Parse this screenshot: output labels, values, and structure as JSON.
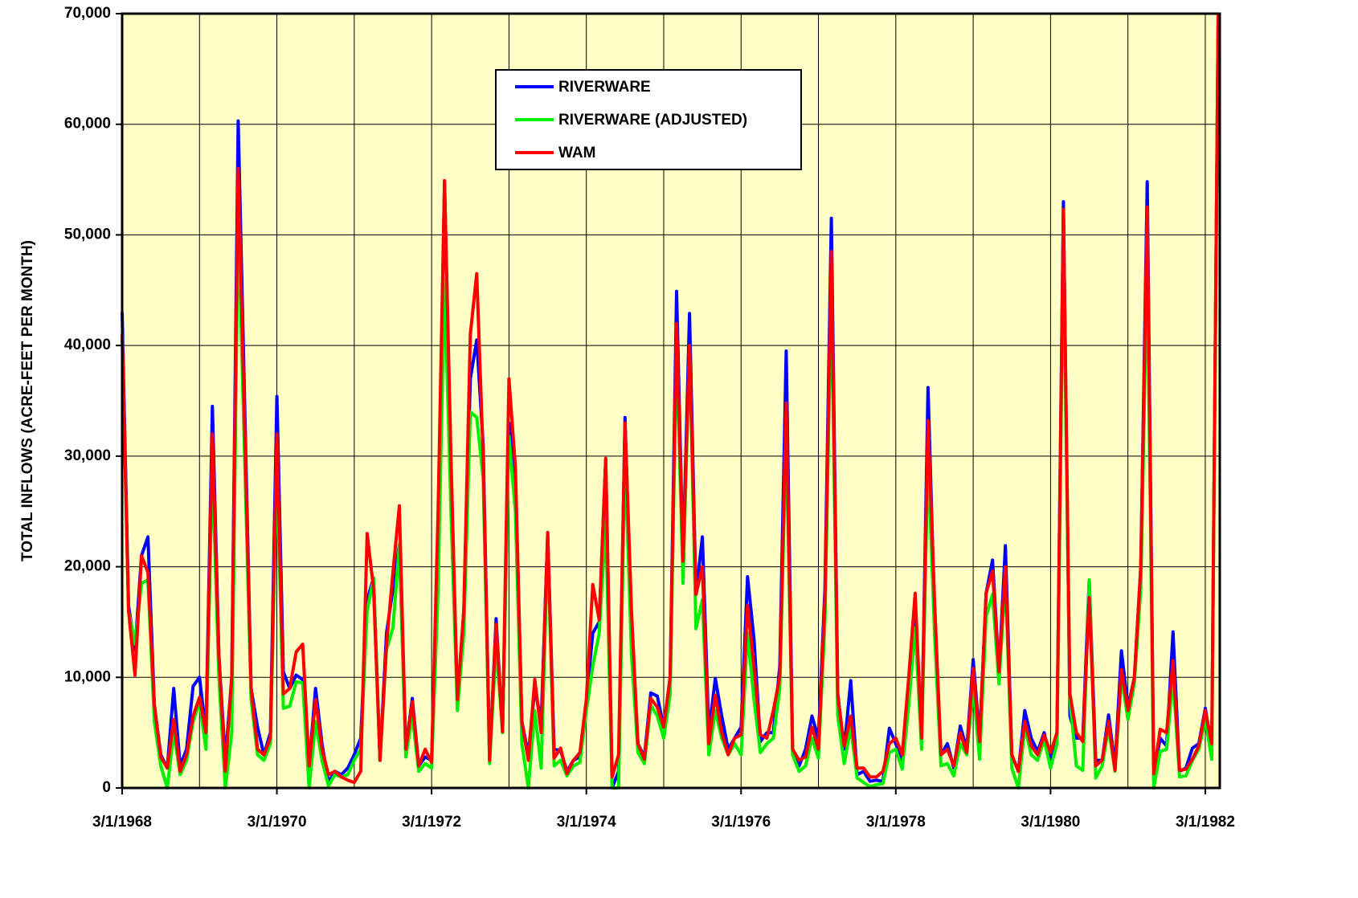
{
  "chart_data": {
    "type": "line",
    "y_label": "TOTAL INFLOWS (ACRE-FEET PER MONTH)",
    "x": [
      "3/1/1968",
      "4/1/1968",
      "5/1/1968",
      "6/1/1968",
      "7/1/1968",
      "8/1/1968",
      "9/1/1968",
      "10/1/1968",
      "11/1/1968",
      "12/1/1968",
      "1/1/1969",
      "2/1/1969",
      "3/1/1969",
      "4/1/1969",
      "5/1/1969",
      "6/1/1969",
      "7/1/1969",
      "8/1/1969",
      "9/1/1969",
      "10/1/1969",
      "11/1/1969",
      "12/1/1969",
      "1/1/1970",
      "2/1/1970",
      "3/1/1970",
      "4/1/1970",
      "5/1/1970",
      "6/1/1970",
      "7/1/1970",
      "8/1/1970",
      "9/1/1970",
      "10/1/1970",
      "11/1/1970",
      "12/1/1970",
      "1/1/1971",
      "2/1/1971",
      "3/1/1971",
      "4/1/1971",
      "5/1/1971",
      "6/1/1971",
      "7/1/1971",
      "8/1/1971",
      "9/1/1971",
      "10/1/1971",
      "11/1/1971",
      "12/1/1971",
      "1/1/1972",
      "2/1/1972",
      "3/1/1972",
      "4/1/1972",
      "5/1/1972",
      "6/1/1972",
      "7/1/1972",
      "8/1/1972",
      "9/1/1972",
      "10/1/1972",
      "11/1/1972",
      "12/1/1972",
      "1/1/1973",
      "2/1/1973",
      "3/1/1973",
      "4/1/1973",
      "5/1/1973",
      "6/1/1973",
      "7/1/1973",
      "8/1/1973",
      "9/1/1973",
      "10/1/1973",
      "11/1/1973",
      "12/1/1973",
      "1/1/1974",
      "2/1/1974",
      "3/1/1974",
      "4/1/1974",
      "5/1/1974",
      "6/1/1974",
      "7/1/1974",
      "8/1/1974",
      "9/1/1974",
      "10/1/1974",
      "11/1/1974",
      "12/1/1974",
      "1/1/1975",
      "2/1/1975",
      "3/1/1975",
      "4/1/1975",
      "5/1/1975",
      "6/1/1975",
      "7/1/1975",
      "8/1/1975",
      "9/1/1975",
      "10/1/1975",
      "11/1/1975",
      "12/1/1975",
      "1/1/1976",
      "2/1/1976",
      "3/1/1976",
      "4/1/1976",
      "5/1/1976",
      "6/1/1976",
      "7/1/1976",
      "8/1/1976",
      "9/1/1976",
      "10/1/1976",
      "11/1/1976",
      "12/1/1976",
      "1/1/1977",
      "2/1/1977",
      "3/1/1977",
      "4/1/1977",
      "5/1/1977",
      "6/1/1977",
      "7/1/1977",
      "8/1/1977",
      "9/1/1977",
      "10/1/1977",
      "11/1/1977",
      "12/1/1977",
      "1/1/1978",
      "2/1/1978",
      "3/1/1978",
      "4/1/1978",
      "5/1/1978",
      "6/1/1978",
      "7/1/1978",
      "8/1/1978",
      "9/1/1978",
      "10/1/1978",
      "11/1/1978",
      "12/1/1978",
      "1/1/1979",
      "2/1/1979",
      "3/1/1979",
      "4/1/1979",
      "5/1/1979",
      "6/1/1979",
      "7/1/1979",
      "8/1/1979",
      "9/1/1979",
      "10/1/1979",
      "11/1/1979",
      "12/1/1979",
      "1/1/1980",
      "2/1/1980",
      "3/1/1980",
      "4/1/1980",
      "5/1/1980",
      "6/1/1980",
      "7/1/1980",
      "8/1/1980",
      "9/1/1980",
      "10/1/1980",
      "11/1/1980",
      "12/1/1980",
      "1/1/1981",
      "2/1/1981",
      "3/1/1981",
      "4/1/1981",
      "5/1/1981",
      "6/1/1981",
      "7/1/1981",
      "8/1/1981",
      "9/1/1981",
      "10/1/1981",
      "11/1/1981",
      "12/1/1981",
      "1/1/1982",
      "2/1/1982",
      "3/1/1982",
      "4/1/1982",
      "5/1/1982"
    ],
    "series": [
      {
        "name": "RIVERWARE",
        "color": "#0000ff",
        "values": [
          43000,
          16500,
          12500,
          21000,
          22700,
          7500,
          3000,
          1800,
          9000,
          2000,
          3500,
          9200,
          10000,
          5000,
          34500,
          12000,
          2500,
          10000,
          60300,
          35000,
          9000,
          5500,
          3000,
          5000,
          35400,
          10500,
          9000,
          10200,
          9800,
          2000,
          9000,
          4000,
          500,
          1500,
          1200,
          1800,
          3000,
          4500,
          17000,
          19000,
          2500,
          14000,
          18000,
          22000,
          3500,
          8100,
          2000,
          2800,
          2500,
          22000,
          54800,
          28000,
          8000,
          16000,
          37000,
          40500,
          31000,
          2500,
          15300,
          5000,
          33000,
          28000,
          6000,
          3000,
          9000,
          6000,
          23000,
          3500,
          3400,
          1500,
          2500,
          2800,
          7800,
          14000,
          15000,
          29700,
          0,
          1500,
          33500,
          14000,
          4000,
          2800,
          8600,
          8300,
          5500,
          10000,
          44900,
          20500,
          42900,
          17500,
          22700,
          5000,
          9900,
          6500,
          3500,
          4500,
          5500,
          19100,
          13500,
          4200,
          5000,
          5000,
          11000,
          39500,
          3500,
          2000,
          3500,
          6500,
          4500,
          18000,
          51500,
          8500,
          3500,
          9700,
          1200,
          1500,
          600,
          700,
          600,
          5400,
          4000,
          2500,
          9000,
          17000,
          4000,
          36200,
          16000,
          3000,
          4000,
          1800,
          5600,
          3500,
          11600,
          4500,
          17600,
          20600,
          10500,
          21900,
          3000,
          1500,
          7000,
          4500,
          3300,
          5000,
          2500,
          5000,
          53000,
          6500,
          4500,
          4500,
          18800,
          2500,
          2500,
          6600,
          2000,
          12400,
          7300,
          10000,
          20000,
          54800,
          1200,
          4500,
          3800,
          14100,
          1500,
          1800,
          3600,
          4000,
          7200,
          3500,
          70000
        ]
      },
      {
        "name": "RIVERWARE (ADJUSTED)",
        "color": "#00ee00",
        "values": [
          41000,
          16000,
          13000,
          18500,
          18800,
          6000,
          2000,
          0,
          5000,
          1200,
          2500,
          6000,
          7800,
          3500,
          29000,
          10000,
          0,
          5000,
          52000,
          30000,
          8000,
          3000,
          2500,
          4000,
          29000,
          7200,
          7400,
          9600,
          9500,
          0,
          6000,
          2500,
          200,
          1200,
          1000,
          1200,
          2500,
          3500,
          16000,
          19000,
          2500,
          12500,
          14500,
          22000,
          2800,
          6500,
          1500,
          2200,
          1800,
          18000,
          46000,
          25000,
          7000,
          14000,
          34000,
          33500,
          28000,
          2200,
          13000,
          5000,
          31800,
          25000,
          4000,
          0,
          7000,
          1800,
          22000,
          2000,
          2500,
          1100,
          2000,
          2300,
          7000,
          11000,
          14000,
          24000,
          0,
          0,
          30000,
          12000,
          3200,
          2200,
          7500,
          6500,
          4500,
          8500,
          40000,
          18500,
          40000,
          14400,
          17000,
          3000,
          7000,
          4500,
          3000,
          4000,
          3000,
          14000,
          8000,
          3200,
          4000,
          4500,
          9000,
          32000,
          3000,
          1500,
          2000,
          4500,
          2700,
          15000,
          45000,
          6500,
          2200,
          5500,
          900,
          500,
          100,
          300,
          400,
          3200,
          3500,
          1700,
          7500,
          14500,
          3500,
          30000,
          14000,
          2000,
          2200,
          1100,
          4000,
          3000,
          9000,
          2600,
          15500,
          17500,
          9400,
          19000,
          1800,
          0,
          5500,
          3000,
          2500,
          4400,
          1800,
          4000,
          49000,
          8000,
          2000,
          1600,
          18800,
          900,
          2000,
          5500,
          1500,
          10000,
          6200,
          9500,
          18000,
          48000,
          0,
          3300,
          3500,
          10000,
          1000,
          1100,
          2500,
          3500,
          6200,
          2600,
          70000
        ]
      },
      {
        "name": "WAM",
        "color": "#ff0000",
        "values": [
          41000,
          16000,
          10200,
          21000,
          19500,
          7500,
          2800,
          1800,
          6200,
          1500,
          3000,
          6500,
          8200,
          5000,
          32000,
          12000,
          1500,
          10000,
          56000,
          33000,
          9000,
          3500,
          3000,
          4500,
          32000,
          8500,
          9000,
          12300,
          13000,
          2000,
          8000,
          3500,
          1200,
          1500,
          1000,
          700,
          500,
          1500,
          23000,
          18000,
          2500,
          13000,
          19500,
          25500,
          3500,
          7800,
          2000,
          3500,
          2300,
          25000,
          54900,
          30000,
          8000,
          16000,
          41000,
          46500,
          30000,
          2500,
          14800,
          5100,
          37000,
          29000,
          6000,
          2500,
          9800,
          5000,
          23100,
          2700,
          3600,
          1300,
          2500,
          3200,
          8000,
          18400,
          15200,
          29800,
          1000,
          3000,
          33000,
          16000,
          4000,
          2600,
          8100,
          7300,
          5500,
          10000,
          42000,
          20500,
          40000,
          17500,
          20000,
          4000,
          8400,
          5000,
          3000,
          4500,
          4800,
          16500,
          11000,
          4800,
          4500,
          7000,
          10000,
          34800,
          3500,
          2500,
          2800,
          5500,
          3500,
          17000,
          48500,
          8300,
          3800,
          6500,
          1800,
          1800,
          1000,
          1000,
          1500,
          4000,
          4500,
          3000,
          10000,
          17600,
          4500,
          33200,
          17000,
          3000,
          3500,
          2000,
          5000,
          3200,
          10800,
          4200,
          17600,
          19600,
          10500,
          20000,
          3000,
          1500,
          6000,
          3800,
          3000,
          4800,
          3200,
          5000,
          52300,
          8500,
          5000,
          4200,
          17200,
          2000,
          2500,
          6000,
          1600,
          10700,
          7000,
          10000,
          20000,
          52500,
          1300,
          5300,
          5000,
          11500,
          1600,
          1700,
          2600,
          3800,
          7000,
          4000,
          70000
        ]
      }
    ],
    "xlim": [
      "3/1/1968",
      "5/1/1982"
    ],
    "xticks": [
      "3/1/1968",
      "3/1/1970",
      "3/1/1972",
      "3/1/1974",
      "3/1/1976",
      "3/1/1978",
      "3/1/1980",
      "3/1/1982"
    ],
    "xgrid": [
      "3/1/1969",
      "3/1/1970",
      "3/1/1971",
      "3/1/1972",
      "3/1/1973",
      "3/1/1974",
      "3/1/1975",
      "3/1/1976",
      "3/1/1977",
      "3/1/1978",
      "3/1/1979",
      "3/1/1980",
      "3/1/1981",
      "3/1/1982"
    ],
    "ylim": [
      0,
      70000
    ],
    "yticks": [
      0,
      {
        "value": 10000,
        "label": "10,000"
      },
      {
        "value": 20000,
        "label": "20,000"
      },
      {
        "value": 30000,
        "label": "30,000"
      },
      {
        "value": 40000,
        "label": "40,000"
      },
      {
        "value": 50000,
        "label": "50,000"
      },
      {
        "value": 60000,
        "label": "60,000"
      },
      {
        "value": 70000,
        "label": "70,000"
      }
    ],
    "grid": true,
    "legend": "upper center",
    "background": "#ffffc6"
  }
}
